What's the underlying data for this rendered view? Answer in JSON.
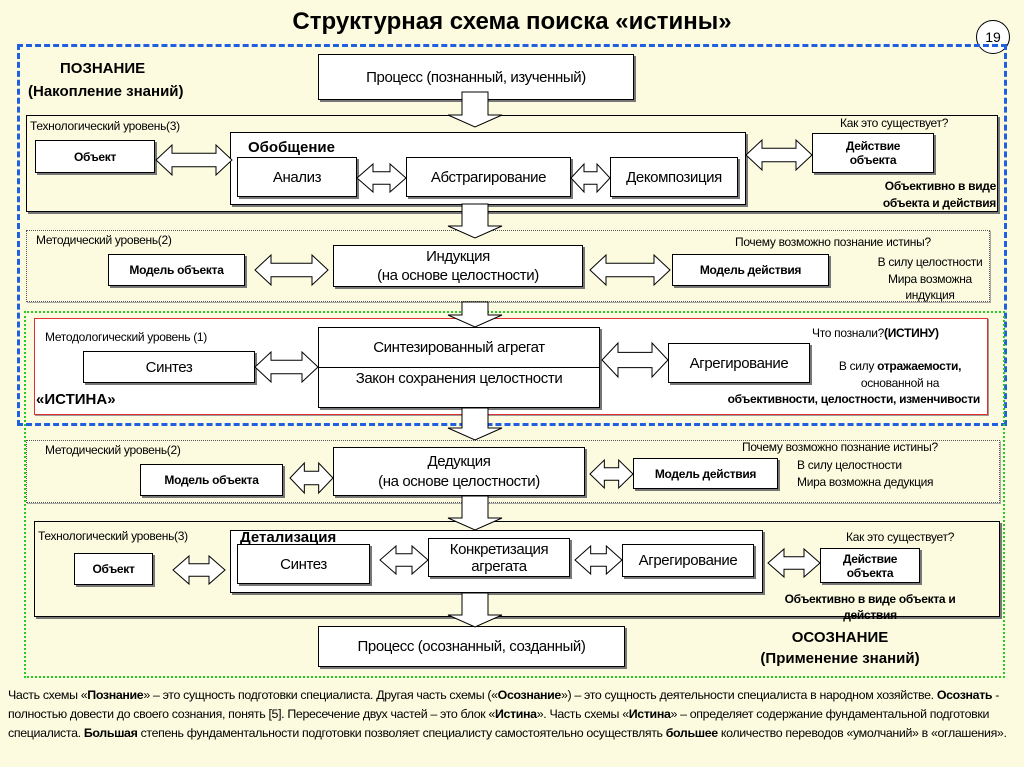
{
  "title": "Структурная схема поиска «истины»",
  "page_number": "19",
  "colors": {
    "background": "#fcfbdf",
    "poznanie_border": "#1f5fe0",
    "osoznanie_border": "#22cc22",
    "istina_border": "#e03030"
  },
  "poznanie": {
    "title": "ПОЗНАНИЕ",
    "subtitle": "(Накопление знаний)"
  },
  "process_top": "Процесс (познанный, изученный)",
  "tech1": {
    "label": "Технологический уровень(3)",
    "question": "Как  это существует?",
    "object": "Объект",
    "group": "Обобщение",
    "steps": [
      "Анализ",
      "Абстрагирование",
      "Декомпозиция"
    ],
    "action": [
      "Действие",
      "объекта"
    ],
    "answer": [
      "Объективно в виде",
      "объекта и действия"
    ]
  },
  "method1": {
    "label": "Методический уровень(2)",
    "question": "Почему возможно познание истины?",
    "model_object": "Модель объекта",
    "center": [
      "Индукция",
      "(на основе целостности)"
    ],
    "model_action": "Модель действия",
    "answer": [
      "В силу целостности",
      "Мира возможна",
      "индукция"
    ]
  },
  "methodology": {
    "label": "Методологический уровень (1)",
    "question_prefix": "Что познали?",
    "question_bold": "(ИСТИНУ)",
    "synthesis": "Синтез",
    "center_top": "Синтезированный агрегат",
    "center_bottom": "Закон сохранения целостности",
    "aggregation": "Агрегирование",
    "istina": "«ИСТИНА»",
    "answer_prefix": "В силу ",
    "answer_bold": "отражаемости,",
    "answer": [
      "основанной на",
      "объективности, целостности, изменчивости"
    ]
  },
  "method2": {
    "label": "Методический уровень(2)",
    "question": "Почему возможно познание истины?",
    "model_object": "Модель объекта",
    "center": [
      "Дедукция",
      "(на основе целостности)"
    ],
    "model_action": "Модель действия",
    "answer": [
      "В силу целостности",
      "Мира возможна дедукция"
    ]
  },
  "tech2": {
    "label": "Технологический уровень(3)",
    "question": "Как  это существует?",
    "object": "Объект",
    "group": "Детализация",
    "steps": [
      "Синтез",
      "Конкретизация агрегата",
      "Агрегирование"
    ],
    "action": [
      "Действие",
      "объекта"
    ],
    "answer": [
      "Объективно в виде  объекта и",
      "действия"
    ]
  },
  "process_bottom": "Процесс (осознанный, созданный)",
  "osoznanie": {
    "title": "ОСОЗНАНИЕ",
    "subtitle": "(Применение знаний)"
  },
  "paragraph": [
    {
      "t": "Часть схемы «"
    },
    {
      "t": "Познание",
      "b": true
    },
    {
      "t": "» – это сущность подготовки специалиста. Другая часть схемы («"
    },
    {
      "t": "Осознание",
      "b": true
    },
    {
      "t": "») – это сущность деятельности специалиста в народном хозяйстве. "
    },
    {
      "t": "Осознать",
      "b": true
    },
    {
      "t": "  - полностью довести до своего сознания, понять [5].   Пересечение двух частей – это блок «"
    },
    {
      "t": "Истина",
      "b": true
    },
    {
      "t": "». Часть схемы «"
    },
    {
      "t": "Истина",
      "b": true
    },
    {
      "t": "» – определяет содержание фундаментальной подготовки специалиста. "
    },
    {
      "t": "Большая",
      "b": true
    },
    {
      "t": " степень фундаментальности подготовки позволяет специалисту самостоятельно осуществлять "
    },
    {
      "t": "большее",
      "b": true
    },
    {
      "t": " количество переводов «умолчаний» в «оглашения»."
    }
  ]
}
